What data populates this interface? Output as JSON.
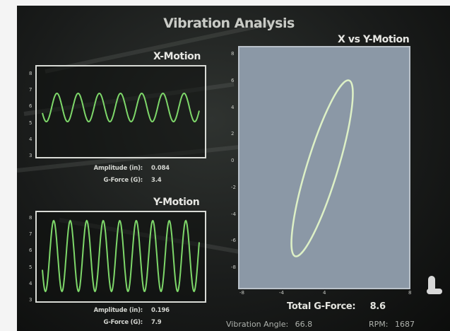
{
  "app": {
    "title": "Vibration Analysis"
  },
  "x_motion": {
    "title": "X-Motion",
    "y_ticks": [
      "8",
      "7",
      "6",
      "5",
      "4",
      "3"
    ],
    "amplitude_label": "Amplitude (in):",
    "amplitude_value": "0.084",
    "gforce_label": "G-Force (G):",
    "gforce_value": "3.4"
  },
  "y_motion": {
    "title": "Y-Motion",
    "y_ticks": [
      "8",
      "7",
      "6",
      "5",
      "4",
      "3"
    ],
    "amplitude_label": "Amplitude (in):",
    "amplitude_value": "0.196",
    "gforce_label": "G-Force (G):",
    "gforce_value": "7.9"
  },
  "xy_motion": {
    "title": "X vs Y-Motion",
    "y_ticks": [
      "8",
      "6",
      "4",
      "2",
      "0",
      "-2",
      "-4",
      "-6",
      "-8"
    ],
    "x_ticks": [
      "-8",
      "-4",
      "4",
      "8"
    ]
  },
  "summary": {
    "total_gforce_label": "Total G-Force:",
    "total_gforce_value": "8.6",
    "vibration_angle_label": "Vibration Angle:",
    "vibration_angle_value": "66.8",
    "rpm_label": "RPM:",
    "rpm_value": "1687"
  },
  "colors": {
    "trace": "#7ed86a",
    "xy_trace": "#ddf0c6",
    "xy_bg": "#8b98a6"
  }
}
